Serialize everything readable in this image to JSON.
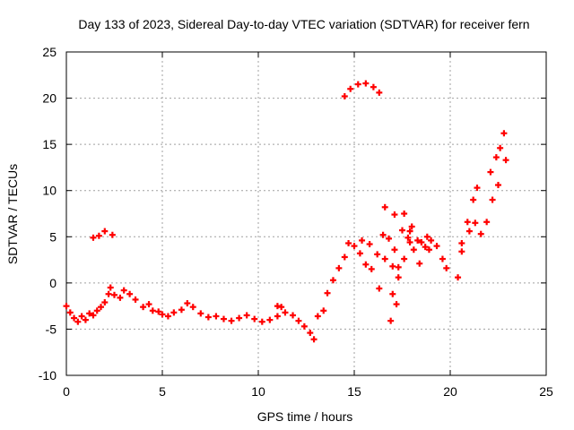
{
  "chart_data": {
    "type": "scatter",
    "title": "Day 133 of 2023, Sidereal Day-to-day VTEC variation (SDTVAR) for receiver fern",
    "xlabel": "GPS time / hours",
    "ylabel": "SDTVAR / TECUs",
    "xlim": [
      0,
      25
    ],
    "ylim": [
      -10,
      25
    ],
    "xticks": [
      "0",
      "5",
      "10",
      "15",
      "20",
      "25"
    ],
    "yticks": [
      "-10",
      "-5",
      "0",
      "5",
      "10",
      "15",
      "20",
      "25"
    ],
    "grid": true,
    "series_color": "#ff0000",
    "series": [
      {
        "name": "sdtvar",
        "points": [
          [
            0.0,
            -2.5
          ],
          [
            0.2,
            -3.2
          ],
          [
            0.4,
            -3.8
          ],
          [
            0.6,
            -4.2
          ],
          [
            0.8,
            -3.6
          ],
          [
            1.0,
            -4.0
          ],
          [
            1.2,
            -3.3
          ],
          [
            1.4,
            -3.5
          ],
          [
            1.6,
            -3.0
          ],
          [
            1.8,
            -2.6
          ],
          [
            2.0,
            -2.1
          ],
          [
            2.2,
            -1.2
          ],
          [
            2.3,
            -0.5
          ],
          [
            2.5,
            -1.3
          ],
          [
            2.8,
            -1.6
          ],
          [
            3.0,
            -0.8
          ],
          [
            3.3,
            -1.2
          ],
          [
            3.6,
            -1.8
          ],
          [
            4.0,
            -2.6
          ],
          [
            4.3,
            -2.3
          ],
          [
            4.5,
            -3.0
          ],
          [
            4.8,
            -3.1
          ],
          [
            5.0,
            -3.4
          ],
          [
            5.3,
            -3.6
          ],
          [
            5.6,
            -3.2
          ],
          [
            6.0,
            -2.9
          ],
          [
            6.3,
            -2.2
          ],
          [
            6.6,
            -2.6
          ],
          [
            7.0,
            -3.3
          ],
          [
            7.4,
            -3.7
          ],
          [
            7.8,
            -3.6
          ],
          [
            8.2,
            -3.9
          ],
          [
            8.6,
            -4.1
          ],
          [
            9.0,
            -3.8
          ],
          [
            9.4,
            -3.5
          ],
          [
            9.8,
            -3.9
          ],
          [
            10.2,
            -4.2
          ],
          [
            10.6,
            -4.0
          ],
          [
            11.0,
            -3.6
          ],
          [
            11.4,
            -3.2
          ],
          [
            11.8,
            -3.5
          ],
          [
            12.1,
            -4.1
          ],
          [
            12.4,
            -4.7
          ],
          [
            12.7,
            -5.4
          ],
          [
            12.9,
            -6.1
          ],
          [
            13.1,
            -3.6
          ],
          [
            13.4,
            -3.0
          ],
          [
            13.6,
            -1.1
          ],
          [
            13.9,
            0.3
          ],
          [
            14.2,
            1.6
          ],
          [
            14.5,
            2.8
          ],
          [
            14.7,
            4.3
          ],
          [
            15.0,
            4.0
          ],
          [
            15.3,
            3.2
          ],
          [
            15.6,
            2.0
          ],
          [
            15.9,
            1.5
          ],
          [
            15.4,
            4.6
          ],
          [
            15.8,
            4.2
          ],
          [
            16.2,
            3.1
          ],
          [
            16.5,
            5.2
          ],
          [
            16.8,
            4.8
          ],
          [
            17.1,
            3.6
          ],
          [
            17.3,
            1.7
          ],
          [
            16.6,
            2.6
          ],
          [
            17.0,
            1.8
          ],
          [
            16.3,
            -0.6
          ],
          [
            14.5,
            20.2
          ],
          [
            14.8,
            21.0
          ],
          [
            15.2,
            21.5
          ],
          [
            15.6,
            21.6
          ],
          [
            16.0,
            21.2
          ],
          [
            16.3,
            20.6
          ],
          [
            1.4,
            4.9
          ],
          [
            1.7,
            5.1
          ],
          [
            2.0,
            5.6
          ],
          [
            2.4,
            5.2
          ],
          [
            16.6,
            8.2
          ],
          [
            17.1,
            7.4
          ],
          [
            17.5,
            5.7
          ],
          [
            17.8,
            4.9
          ],
          [
            18.1,
            3.6
          ],
          [
            18.4,
            2.1
          ],
          [
            17.6,
            7.5
          ],
          [
            18.0,
            6.1
          ],
          [
            18.5,
            4.4
          ],
          [
            18.9,
            3.6
          ],
          [
            17.9,
            5.6
          ],
          [
            18.3,
            4.6
          ],
          [
            18.7,
            3.9
          ],
          [
            17.0,
            -1.2
          ],
          [
            17.3,
            0.6
          ],
          [
            17.6,
            2.6
          ],
          [
            17.9,
            4.4
          ],
          [
            16.9,
            -4.1
          ],
          [
            17.2,
            -2.3
          ],
          [
            18.8,
            5.0
          ],
          [
            19.0,
            4.6
          ],
          [
            19.3,
            4.0
          ],
          [
            19.6,
            2.6
          ],
          [
            19.8,
            1.6
          ],
          [
            20.4,
            0.6
          ],
          [
            20.6,
            3.4
          ],
          [
            20.9,
            6.6
          ],
          [
            21.2,
            9.0
          ],
          [
            21.4,
            10.3
          ],
          [
            20.6,
            4.3
          ],
          [
            21.0,
            5.6
          ],
          [
            21.3,
            6.5
          ],
          [
            21.6,
            5.3
          ],
          [
            21.9,
            6.6
          ],
          [
            22.2,
            9.0
          ],
          [
            22.5,
            10.6
          ],
          [
            22.1,
            12.0
          ],
          [
            22.4,
            13.6
          ],
          [
            22.8,
            16.2
          ],
          [
            22.6,
            14.6
          ],
          [
            22.9,
            13.3
          ],
          [
            11.0,
            -2.5
          ],
          [
            11.2,
            -2.6
          ]
        ]
      }
    ]
  }
}
